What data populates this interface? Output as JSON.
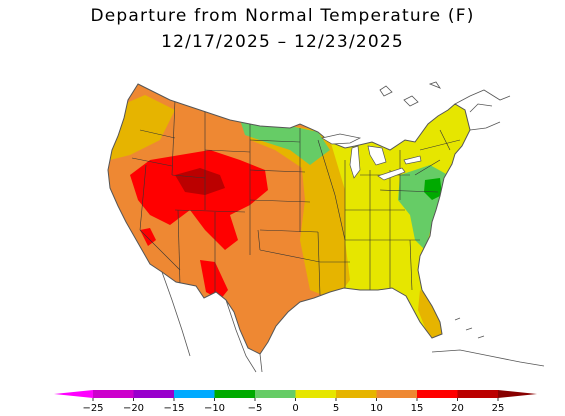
{
  "title": {
    "line1": "Departure from Normal Temperature (F)",
    "line2": "12/17/2025 – 12/23/2025"
  },
  "legend": {
    "bins": [
      {
        "from": -25,
        "to": -20,
        "color": "#cc00cc"
      },
      {
        "from": -20,
        "to": -15,
        "color": "#9900cc"
      },
      {
        "from": -15,
        "to": -10,
        "color": "#00aaff"
      },
      {
        "from": -10,
        "to": -5,
        "color": "#00aa00"
      },
      {
        "from": -5,
        "to": 0,
        "color": "#66cc66"
      },
      {
        "from": 0,
        "to": 5,
        "color": "#e6e600"
      },
      {
        "from": 5,
        "to": 10,
        "color": "#e6b400"
      },
      {
        "from": 10,
        "to": 15,
        "color": "#ee8833"
      },
      {
        "from": 15,
        "to": 20,
        "color": "#ff0000"
      },
      {
        "from": 20,
        "to": 25,
        "color": "#bb0000"
      }
    ],
    "low_arrow_color": "#ff00ff",
    "high_arrow_color": "#880000",
    "ticks": [
      "−25",
      "−20",
      "−15",
      "−10",
      "−5",
      "0",
      "5",
      "10",
      "15",
      "20",
      "25"
    ]
  },
  "map_colors": {
    "warm_10_15": "#ee8833",
    "warm_5_10": "#e6b400",
    "warm_0_5": "#e6e600",
    "warm_15_20": "#ff0000",
    "warm_20_25": "#bb0000",
    "cool_m5_0": "#66cc66",
    "cool_m10_m5": "#00aa00",
    "border": "#333333",
    "coastline": "#555555"
  }
}
